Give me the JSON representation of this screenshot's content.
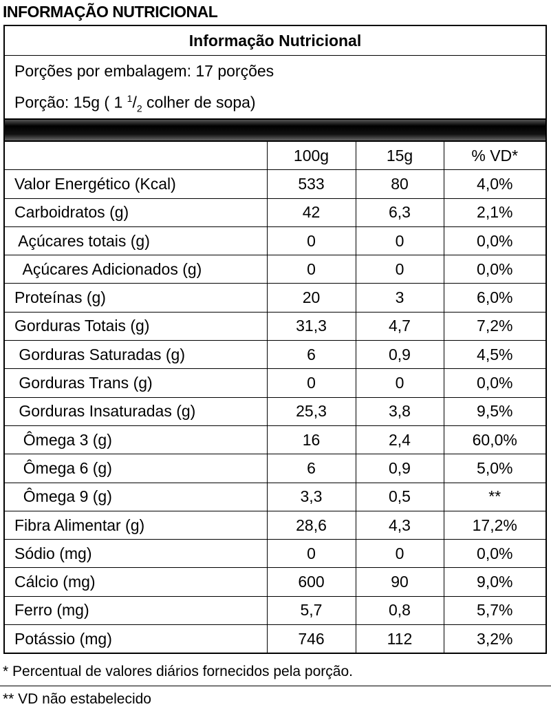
{
  "header": {
    "title": "INFORMAÇÃO NUTRICIONAL"
  },
  "panel": {
    "title": "Informação Nutricional",
    "servings": "Porções por embalagem: 17 porções",
    "portion": {
      "prefix": "Porção: 15g ( 1 ",
      "numerator": "1",
      "fraction_bar": "/",
      "denominator": "2",
      "suffix": " colher de sopa)"
    }
  },
  "table": {
    "columns": [
      "",
      "100g",
      "15g",
      "% VD*"
    ],
    "rows": [
      [
        "Valor Energético (Kcal)",
        "533",
        "80",
        "4,0%"
      ],
      [
        "Carboidratos (g)",
        "42",
        "6,3",
        "2,1%"
      ],
      [
        " Açúcares totais (g)",
        "0",
        "0",
        "0,0%"
      ],
      [
        "  Açúcares Adicionados (g)",
        "0",
        "0",
        "0,0%"
      ],
      [
        "Proteínas (g)",
        "20",
        "3",
        "6,0%"
      ],
      [
        "Gorduras Totais (g)",
        "31,3",
        "4,7",
        "7,2%"
      ],
      [
        " Gorduras Saturadas (g)",
        "6",
        "0,9",
        "4,5%"
      ],
      [
        " Gorduras Trans (g)",
        "0",
        "0",
        "0,0%"
      ],
      [
        " Gorduras Insaturadas (g)",
        "25,3",
        "3,8",
        "9,5%"
      ],
      [
        "  Ômega 3 (g)",
        "16",
        "2,4",
        "60,0%"
      ],
      [
        "  Ômega 6 (g)",
        "6",
        "0,9",
        "5,0%"
      ],
      [
        "  Ômega 9 (g)",
        "3,3",
        "0,5",
        "**"
      ],
      [
        "Fibra Alimentar (g)",
        "28,6",
        "4,3",
        "17,2%"
      ],
      [
        "Sódio (mg)",
        "0",
        "0",
        "0,0%"
      ],
      [
        "Cálcio (mg)",
        "600",
        "90",
        "9,0%"
      ],
      [
        "Ferro (mg)",
        "5,7",
        "0,8",
        "5,7%"
      ],
      [
        "Potássio (mg)",
        "746",
        "112",
        "3,2%"
      ]
    ]
  },
  "footnotes": [
    "* Percentual de valores diários fornecidos pela porção.",
    "** VD não estabelecido"
  ]
}
